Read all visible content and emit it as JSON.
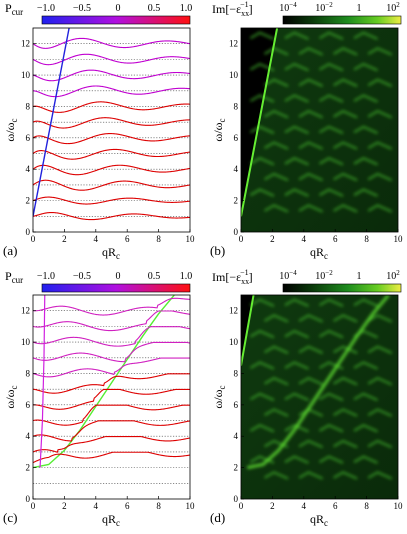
{
  "colors": {
    "dispersion_curve": "#dd0000",
    "dotted_reference": "#444444",
    "light_line_a": "#2222dd",
    "light_line_c": "#55ee33",
    "map_peak": "#66ee33",
    "colorbar_left": [
      "#2020ee",
      "#b010e0",
      "#ff1010"
    ],
    "colorbar_right": [
      "#000000",
      "#0a3a0a",
      "#1e8c1e",
      "#66cc22",
      "#eeee44"
    ]
  },
  "colorbar_left": {
    "label_main": "P",
    "label_sub": "cur",
    "ticks": [
      "−1.0",
      "−0.5",
      "0",
      "0.5",
      "1.0"
    ],
    "range": [
      -1.0,
      1.0
    ]
  },
  "colorbar_right": {
    "label_prefix": "Im[−ε",
    "label_sub": "xx",
    "label_sup": "−1",
    "label_suffix": "]",
    "ticks": [
      {
        "base": "10",
        "exp": "−4"
      },
      {
        "base": "10",
        "exp": "−2"
      },
      {
        "base": "1",
        "exp": ""
      },
      {
        "base": "10",
        "exp": "2"
      }
    ],
    "scale": "log",
    "range": [
      0.0001,
      100
    ]
  },
  "panels": {
    "a": {
      "label": "(a)"
    },
    "b": {
      "label": "(b)"
    },
    "c": {
      "label": "(c)"
    },
    "d": {
      "label": "(d)"
    }
  },
  "axes": {
    "ylabel_main": "ω/ω",
    "ylabel_sub": "c",
    "xlabel_main": "qR",
    "xlabel_sub": "c",
    "xlim": [
      0,
      10
    ],
    "ylim": [
      0,
      13
    ],
    "xticks": [
      "0",
      "2",
      "4",
      "6",
      "8",
      "10"
    ],
    "yticks": [
      "0",
      "2",
      "4",
      "6",
      "8",
      "10",
      "12"
    ]
  },
  "chart_data": [
    {
      "panel": "a",
      "type": "line",
      "xlim": [
        0,
        10
      ],
      "ylim": [
        0,
        13
      ],
      "dotted_reference_levels": [
        1,
        2,
        3,
        4,
        5,
        6,
        7,
        8,
        9,
        10,
        11,
        12
      ],
      "light_line": {
        "x": [
          0,
          2.3
        ],
        "y": [
          1.0,
          13.0
        ]
      },
      "mode_rule": "Bernstein-like branches starting at harmonic n at q=0 and oscillating about n with decaying amplitude"
    },
    {
      "panel": "b",
      "type": "heatmap",
      "xlim": [
        0,
        10
      ],
      "ylim": [
        0,
        13
      ],
      "scale": "log",
      "light_line": {
        "x": [
          0,
          2.3
        ],
        "y": [
          1.0,
          13.0
        ]
      }
    },
    {
      "panel": "c",
      "type": "line",
      "xlim": [
        0,
        10
      ],
      "ylim": [
        0,
        13
      ],
      "dotted_reference_levels": [
        1,
        2,
        3,
        4,
        5,
        6,
        7,
        8,
        9,
        10,
        11,
        12
      ],
      "guide_curve": {
        "x": [
          0.0,
          1.0,
          2.0,
          3.0,
          4.0,
          5.0,
          6.0,
          7.0,
          8.0,
          9.0
        ],
        "y": [
          2.0,
          2.2,
          3.1,
          4.4,
          5.9,
          7.4,
          8.9,
          10.4,
          11.8,
          13.0
        ]
      }
    },
    {
      "panel": "d",
      "type": "heatmap",
      "xlim": [
        0,
        10
      ],
      "ylim": [
        0,
        13
      ],
      "scale": "log",
      "light_line": {
        "x": [
          0,
          0.8
        ],
        "y": [
          8.5,
          13.0
        ]
      }
    }
  ]
}
